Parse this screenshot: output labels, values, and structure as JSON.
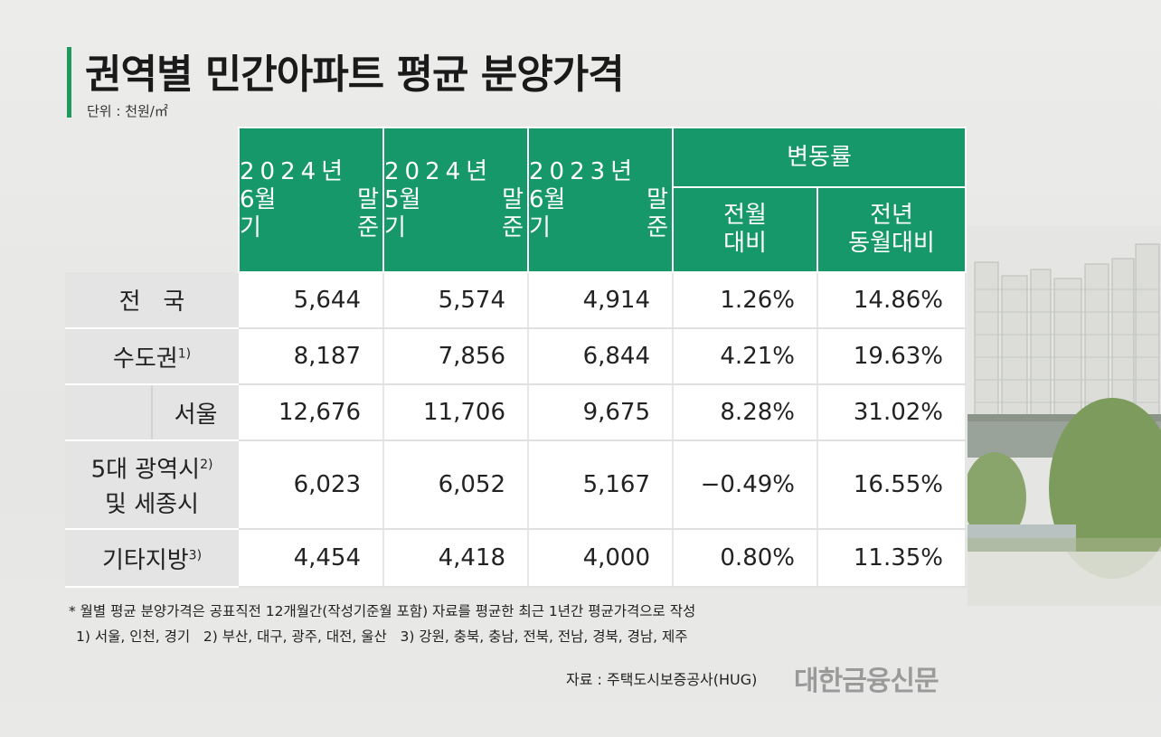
{
  "title": "권역별 민간아파트 평균 분양가격",
  "unit": "단위 : 천원/㎡",
  "header": {
    "col1": {
      "l1": "2024년",
      "l2a": "6월",
      "l2b": "말",
      "l3a": "기",
      "l3b": "준"
    },
    "col2": {
      "l1": "2024년",
      "l2a": "5월",
      "l2b": "말",
      "l3a": "기",
      "l3b": "준"
    },
    "col3": {
      "l1": "2023년",
      "l2a": "6월",
      "l2b": "말",
      "l3a": "기",
      "l3b": "준"
    },
    "change": "변동률",
    "mom_l1": "전월",
    "mom_l2": "대비",
    "yoy_l1": "전년",
    "yoy_l2": "동월대비"
  },
  "rows": {
    "national": {
      "label": "전   국",
      "v1": "5,644",
      "v2": "5,574",
      "v3": "4,914",
      "mom": "1.26%",
      "yoy": "14.86%"
    },
    "capital": {
      "label": "수도권",
      "sup": "1)",
      "v1": "8,187",
      "v2": "7,856",
      "v3": "6,844",
      "mom": "4.21%",
      "yoy": "19.63%"
    },
    "seoul": {
      "label": "서울",
      "v1": "12,676",
      "v2": "11,706",
      "v3": "9,675",
      "mom": "8.28%",
      "yoy": "31.02%"
    },
    "metro": {
      "label1": "5대 광역시",
      "sup": "2)",
      "label2": "및 세종시",
      "v1": "6,023",
      "v2": "6,052",
      "v3": "5,167",
      "mom": "−0.49%",
      "yoy": "16.55%"
    },
    "other": {
      "label": "기타지방",
      "sup": "3)",
      "v1": "4,454",
      "v2": "4,418",
      "v3": "4,000",
      "mom": "0.80%",
      "yoy": "11.35%"
    }
  },
  "notes": {
    "line1": "* 월별 평균 분양가격은 공표직전 12개월간(작성기준월 포함) 자료를 평균한 최근 1년간 평균가격으로 작성",
    "line2": "1) 서울, 인천, 경기   2) 부산, 대구, 광주, 대전, 울산   3) 강원, 충북, 충남, 전북, 전남, 경북, 경남, 제주"
  },
  "source": "자료 : 주택도시보증공사(HUG)",
  "logo": "대한금융신문"
}
